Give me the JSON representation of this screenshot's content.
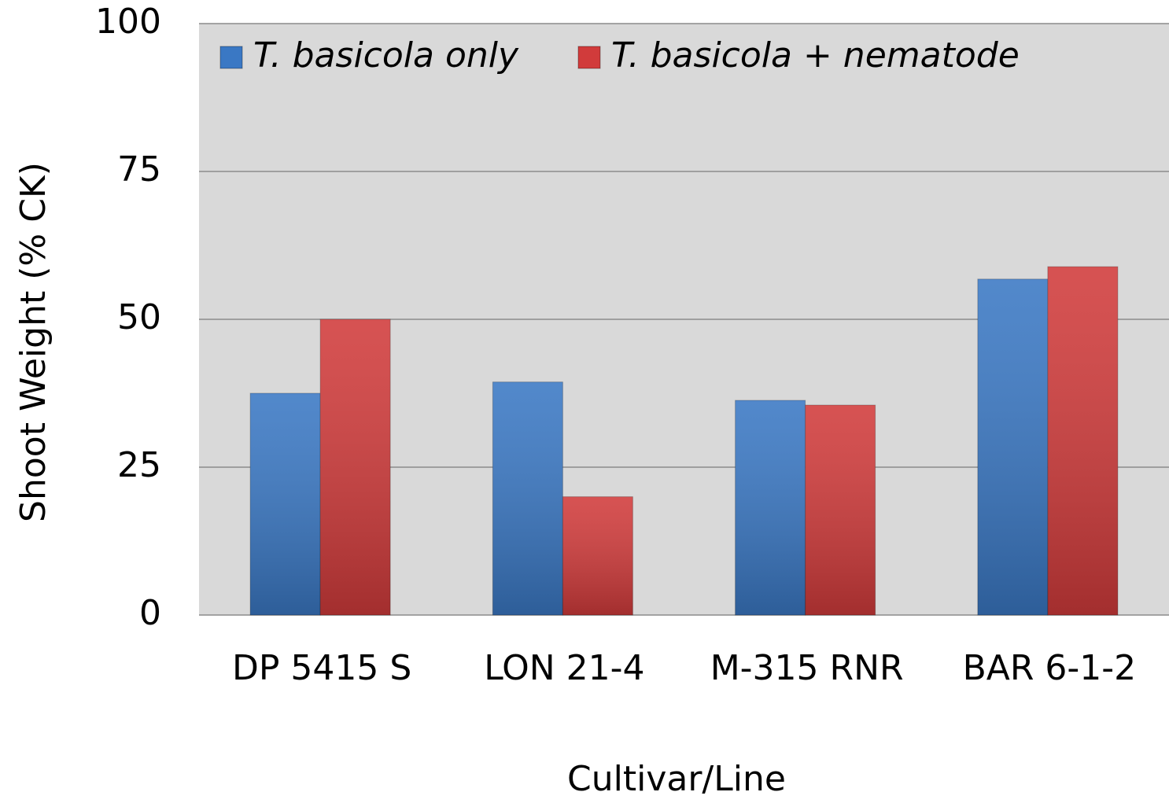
{
  "chart_data": {
    "type": "bar",
    "x_label": "Cultivar/Line",
    "y_label": "Shoot Weight (% CK)",
    "categories": [
      "DP 5415 S",
      "LON 21-4",
      "M-315 RNR",
      "BAR 6-1-2"
    ],
    "series": [
      {
        "name": "T. basicola only",
        "color": "#3a78c4",
        "values": [
          37.5,
          39.4,
          36.3,
          56.8
        ]
      },
      {
        "name": "T. basicola + nematode",
        "color": "#d13b3b",
        "values": [
          50,
          20,
          35.5,
          58.9
        ]
      }
    ],
    "ylim": [
      0,
      100
    ],
    "yticks": [
      0,
      25,
      50,
      75,
      100
    ],
    "grid": true,
    "legend": "top-left"
  }
}
